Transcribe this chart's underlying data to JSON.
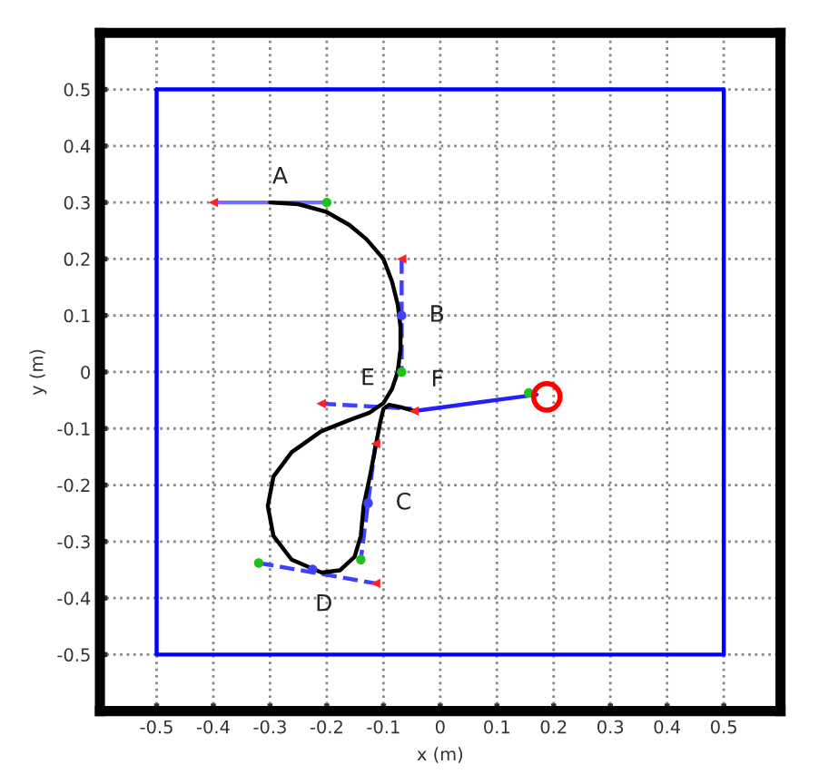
{
  "chart_data": {
    "type": "line",
    "xlabel": "x (m)",
    "ylabel": "y (m)",
    "xlim": [
      -0.6,
      0.6
    ],
    "ylim": [
      -0.6,
      0.6
    ],
    "xticks": [
      -0.5,
      -0.4,
      -0.3,
      -0.2,
      -0.1,
      0,
      0.1,
      0.2,
      0.3,
      0.4,
      0.5
    ],
    "yticks": [
      -0.5,
      -0.4,
      -0.3,
      -0.2,
      -0.1,
      0,
      0.1,
      0.2,
      0.3,
      0.4,
      0.5
    ],
    "grid": true,
    "series": [
      {
        "color": "#0000ff",
        "line_style": "solid",
        "x": [
          -0.5,
          0.5,
          0.5
        ],
        "values": [
          0.5,
          0.5,
          -0.5
        ]
      },
      {
        "color": "#0000ff",
        "line_style": "solid",
        "x": [
          0.5,
          -0.5,
          -0.5
        ],
        "values": [
          -0.5,
          -0.5,
          0.5
        ]
      },
      {
        "color": "#7070ff",
        "line_style": "solid",
        "x": [
          -0.4,
          -0.2
        ],
        "values": [
          0.3,
          0.3
        ]
      },
      {
        "color": "#4040ff",
        "line_style": "dashed",
        "x": [
          -0.068,
          -0.068
        ],
        "values": [
          0.2,
          0.0
        ]
      },
      {
        "color": "#4040ff",
        "line_style": "dashed",
        "x": [
          -0.114,
          -0.14
        ],
        "values": [
          -0.127,
          -0.332
        ]
      },
      {
        "color": "#4040ff",
        "line_style": "dashed",
        "x": [
          -0.32,
          -0.114
        ],
        "values": [
          -0.338,
          -0.374
        ]
      },
      {
        "color": "#4040ff",
        "line_style": "dashed",
        "x": [
          -0.21,
          -0.05
        ],
        "values": [
          -0.056,
          -0.065
        ]
      },
      {
        "color": "#2020ff",
        "line_style": "solid",
        "x": [
          -0.046,
          0.17
        ],
        "values": [
          -0.069,
          -0.04
        ]
      },
      {
        "color": "#000000",
        "line_style": "solid",
        "x": [
          -0.3,
          -0.25,
          -0.2,
          -0.16,
          -0.13,
          -0.1,
          -0.085,
          -0.075,
          -0.07,
          -0.07,
          -0.075,
          -0.085,
          -0.1,
          -0.125,
          -0.16,
          -0.21,
          -0.262,
          -0.294,
          -0.304,
          -0.294,
          -0.262,
          -0.209,
          -0.177,
          -0.151,
          -0.14,
          -0.135,
          -0.124,
          -0.114,
          -0.106,
          -0.1,
          -0.09,
          -0.07,
          -0.046
        ],
        "values": [
          0.3,
          0.297,
          0.283,
          0.26,
          0.235,
          0.2,
          0.16,
          0.12,
          0.08,
          0.04,
          0.0,
          -0.03,
          -0.055,
          -0.072,
          -0.085,
          -0.105,
          -0.142,
          -0.185,
          -0.237,
          -0.29,
          -0.332,
          -0.355,
          -0.351,
          -0.327,
          -0.29,
          -0.237,
          -0.185,
          -0.132,
          -0.09,
          -0.065,
          -0.058,
          -0.062,
          -0.069
        ]
      },
      {
        "type": "scatter",
        "color": "#ff2020",
        "marker": "triangle",
        "x": [
          -0.4,
          -0.068,
          -0.114,
          -0.114,
          -0.21,
          -0.046
        ],
        "values": [
          0.3,
          0.2,
          -0.127,
          -0.374,
          -0.056,
          -0.069
        ]
      },
      {
        "type": "scatter",
        "color": "#20c020",
        "marker": "circle",
        "x": [
          -0.2,
          -0.068,
          -0.14,
          -0.32,
          0.156
        ],
        "values": [
          0.3,
          0.0,
          -0.332,
          -0.338,
          -0.037
        ]
      },
      {
        "type": "scatter",
        "color": "#4040ff",
        "marker": "circle",
        "x": [
          -0.068,
          -0.127,
          -0.225
        ],
        "values": [
          0.1,
          -0.232,
          -0.349
        ]
      },
      {
        "type": "bubble",
        "color": "#ff0000",
        "x": [
          0.188
        ],
        "values": [
          -0.044
        ],
        "sizes": [
          1
        ]
      }
    ],
    "annotations": [
      {
        "text": "A",
        "x": -0.3,
        "y": 0.3
      },
      {
        "text": "B",
        "x": -0.068,
        "y": 0.1
      },
      {
        "text": "C",
        "x": -0.127,
        "y": -0.232
      },
      {
        "text": "D",
        "x": -0.205,
        "y": -0.358
      },
      {
        "text": "E",
        "x": -0.119,
        "y": -0.061
      },
      {
        "text": "F",
        "x": -0.005,
        "y": -0.0635
      }
    ]
  }
}
